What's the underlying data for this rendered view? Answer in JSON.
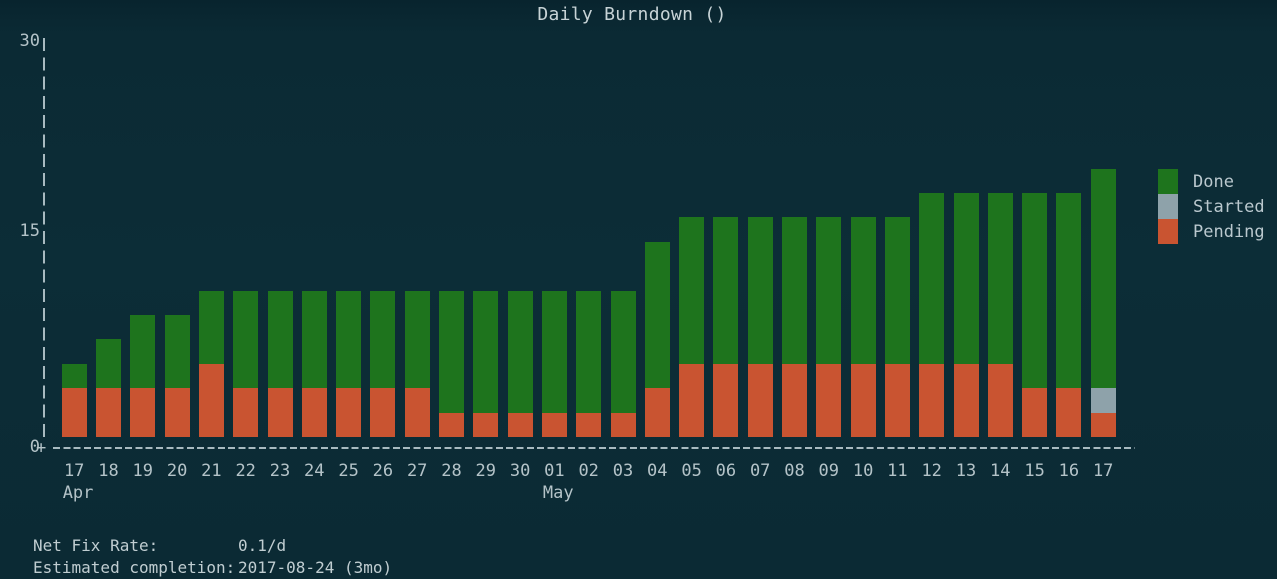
{
  "chart": {
    "title": "Daily Burndown ()"
  },
  "chart_data": {
    "type": "bar",
    "stacked": true,
    "title": "Daily Burndown ()",
    "xlabel": "",
    "ylabel": "",
    "ylim": [
      0,
      30
    ],
    "y_ticks": [
      {
        "label": "30",
        "value": 30
      },
      {
        "label": "15",
        "value": 15
      },
      {
        "label": "0",
        "value": 0
      }
    ],
    "grid": false,
    "legend_position": "right",
    "categories": [
      "Apr 17",
      "Apr 18",
      "Apr 19",
      "Apr 20",
      "Apr 21",
      "Apr 22",
      "Apr 23",
      "Apr 24",
      "Apr 25",
      "Apr 26",
      "Apr 27",
      "Apr 28",
      "Apr 29",
      "Apr 30",
      "May 01",
      "May 02",
      "May 03",
      "May 04",
      "May 05",
      "May 06",
      "May 07",
      "May 08",
      "May 09",
      "May 10",
      "May 11",
      "May 12",
      "May 13",
      "May 14",
      "May 15",
      "May 16",
      "May 17"
    ],
    "x_tick_labels": [
      "17",
      "18",
      "19",
      "20",
      "21",
      "22",
      "23",
      "24",
      "25",
      "26",
      "27",
      "28",
      "29",
      "30",
      "01",
      "02",
      "03",
      "04",
      "05",
      "06",
      "07",
      "08",
      "09",
      "10",
      "11",
      "12",
      "13",
      "14",
      "15",
      "16",
      "17"
    ],
    "month_labels": [
      {
        "label": "Apr",
        "index": 0
      },
      {
        "label": "May",
        "index": 14
      }
    ],
    "series": [
      {
        "name": "Done",
        "color": "#1e741d",
        "values": [
          2,
          4,
          6,
          6,
          6,
          8,
          8,
          8,
          8,
          8,
          8,
          10,
          10,
          10,
          10,
          10,
          10,
          12,
          12,
          12,
          12,
          12,
          12,
          12,
          12,
          14,
          14,
          14,
          16,
          16,
          18
        ]
      },
      {
        "name": "Started",
        "color": "#8ea2aa",
        "values": [
          0,
          0,
          0,
          0,
          0,
          0,
          0,
          0,
          0,
          0,
          0,
          0,
          0,
          0,
          0,
          0,
          0,
          0,
          0,
          0,
          0,
          0,
          0,
          0,
          0,
          0,
          0,
          0,
          0,
          0,
          2
        ]
      },
      {
        "name": "Pending",
        "color": "#c95431",
        "values": [
          4,
          4,
          4,
          4,
          6,
          4,
          4,
          4,
          4,
          4,
          4,
          2,
          2,
          2,
          2,
          2,
          2,
          4,
          6,
          6,
          6,
          6,
          6,
          6,
          6,
          6,
          6,
          6,
          4,
          4,
          2
        ]
      }
    ]
  },
  "legend": {
    "entries": [
      {
        "label": "Done",
        "color": "#1e741d"
      },
      {
        "label": "Started",
        "color": "#8ea2aa"
      },
      {
        "label": "Pending",
        "color": "#c95431"
      }
    ]
  },
  "axis": {
    "plus_glyph": "+"
  },
  "stats": {
    "rows": [
      {
        "label": "Net Fix Rate:",
        "value": "0.1/d"
      },
      {
        "label": "Estimated completion:",
        "value": "2017-08-24 (3mo)"
      }
    ]
  },
  "colors": {
    "background": "#0b2a34",
    "done": "#1e741d",
    "started": "#8ea2aa",
    "pending": "#c95431",
    "text": "#bfccd1",
    "axis": "#a8bac0"
  }
}
